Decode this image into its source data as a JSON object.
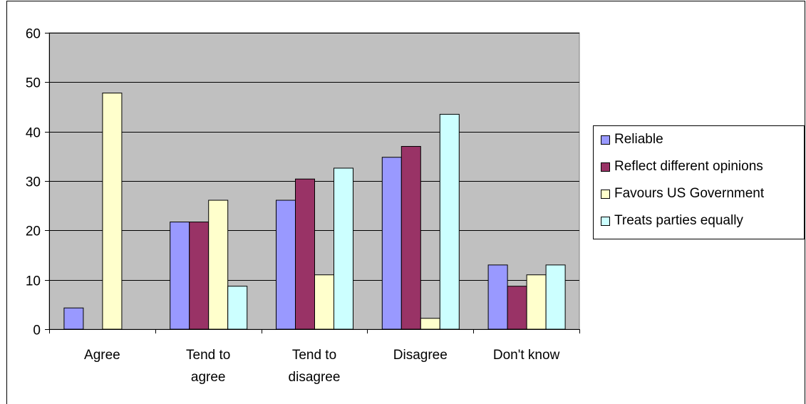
{
  "chart_data": {
    "type": "bar",
    "categories": [
      [
        "Agree"
      ],
      [
        "Tend to",
        "agree"
      ],
      [
        "Tend to",
        "disagree"
      ],
      [
        "Disagree"
      ],
      [
        "Don't know"
      ]
    ],
    "series": [
      {
        "name": "Reliable",
        "color": "#9999ff",
        "values": [
          4.3,
          21.7,
          26.1,
          34.8,
          13.0
        ]
      },
      {
        "name": "Reflect different opinions",
        "color": "#993366",
        "values": [
          0,
          21.7,
          30.4,
          37.0,
          8.7
        ]
      },
      {
        "name": "Favours US Government",
        "color": "#ffffcc",
        "values": [
          47.8,
          26.1,
          11.0,
          2.2,
          11.0
        ]
      },
      {
        "name": "Treats parties equally",
        "color": "#ccffff",
        "values": [
          0,
          8.7,
          32.6,
          43.5,
          13.0
        ]
      }
    ],
    "ylim": [
      0,
      60
    ],
    "yticks": [
      0,
      10,
      20,
      30,
      40,
      50,
      60
    ],
    "grid": true,
    "plot_background": "#c0c0c0",
    "legend_position": "right"
  }
}
